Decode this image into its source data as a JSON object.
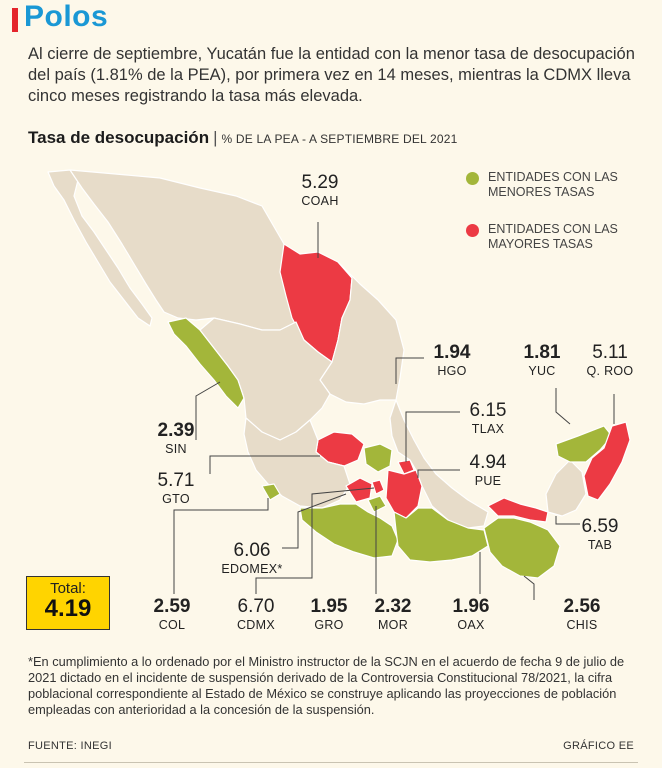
{
  "header": {
    "section": "Polos"
  },
  "intro": "Al cierre de septiembre, Yucatán fue la entidad con la menor tasa de desocupación del país (1.81% de la PEA), por primera vez en 14 meses, mientras la CDMX lleva cinco meses registrando la tasa más elevada.",
  "chart": {
    "title": "Tasa de desocupación",
    "subtitle": "% DE LA PEA - A SEPTIEMBRE DEL 2021",
    "separator": "|"
  },
  "legend": [
    {
      "label": "ENTIDADES CON LAS MENORES TASAS",
      "color": "#a3b63a"
    },
    {
      "label": "ENTIDADES CON LAS MAYORES TASAS",
      "color": "#ec3a44"
    }
  ],
  "colors": {
    "low": "#a3b63a",
    "high": "#ec3a44",
    "neutral": "#e7dcc9",
    "border": "#ffffff",
    "accent": "#1a98d5",
    "total": "#ffd400"
  },
  "chart_data": {
    "type": "choropleth",
    "unit": "% de la PEA",
    "states": [
      {
        "code": "COAH",
        "value": "5.29",
        "group": "high"
      },
      {
        "code": "HGO",
        "value": "1.94",
        "group": "low"
      },
      {
        "code": "YUC",
        "value": "1.81",
        "group": "low"
      },
      {
        "code": "Q. ROO",
        "value": "5.11",
        "group": "high"
      },
      {
        "code": "SIN",
        "value": "2.39",
        "group": "low"
      },
      {
        "code": "TLAX",
        "value": "6.15",
        "group": "high"
      },
      {
        "code": "PUE",
        "value": "4.94",
        "group": "high"
      },
      {
        "code": "GTO",
        "value": "5.71",
        "group": "high"
      },
      {
        "code": "TAB",
        "value": "6.59",
        "group": "high"
      },
      {
        "code": "EDOMEX*",
        "value": "6.06",
        "group": "high"
      },
      {
        "code": "COL",
        "value": "2.59",
        "group": "low"
      },
      {
        "code": "CDMX",
        "value": "6.70",
        "group": "high"
      },
      {
        "code": "GRO",
        "value": "1.95",
        "group": "low"
      },
      {
        "code": "MOR",
        "value": "2.32",
        "group": "low"
      },
      {
        "code": "OAX",
        "value": "1.96",
        "group": "low"
      },
      {
        "code": "CHIS",
        "value": "2.56",
        "group": "low"
      }
    ]
  },
  "total": {
    "label": "Total:",
    "value": "4.19"
  },
  "footnote": "*En cumplimiento a lo ordenado por el Ministro instructor de la SCJN en el acuerdo de fecha 9 de julio de 2021 dictado en el incidente de suspensión derivado de la Controversia Constitucional 78/2021, la cifra poblacional correspondiente al Estado de México se construye aplicando las proyecciones de población empleadas con anterioridad a la concesión de la suspensión.",
  "source": "FUENTE: INEGI",
  "credit": "GRÁFICO EE"
}
